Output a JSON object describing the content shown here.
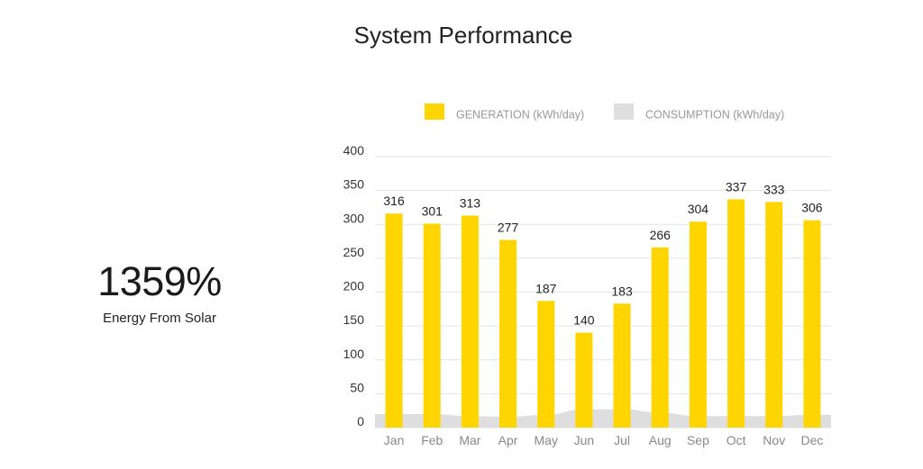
{
  "header": {
    "title": "System Performance"
  },
  "summary": {
    "value": "1359%",
    "label": "Energy From Solar"
  },
  "colors": {
    "generation": "#FFD500",
    "consumption": "#DEDEDE",
    "grid": "#E3E3E3"
  },
  "chart_data": {
    "type": "bar",
    "title": "",
    "xlabel": "",
    "ylabel": "",
    "ylim": [
      0,
      400
    ],
    "yticks": [
      0,
      50,
      100,
      150,
      200,
      250,
      300,
      350,
      400
    ],
    "categories": [
      "Jan",
      "Feb",
      "Mar",
      "Apr",
      "May",
      "Jun",
      "Jul",
      "Aug",
      "Sep",
      "Oct",
      "Nov",
      "Dec"
    ],
    "legend_position": "top-right",
    "series": [
      {
        "name": "GENERATION (kWh/day)",
        "type": "bar",
        "color": "#FFD500",
        "values": [
          316,
          301,
          313,
          277,
          187,
          140,
          183,
          266,
          304,
          337,
          333,
          306
        ]
      },
      {
        "name": "CONSUMPTION (kWh/day)",
        "type": "area",
        "color": "#DEDEDE",
        "values": [
          20,
          20,
          17,
          16,
          19,
          27,
          27,
          22,
          17,
          17,
          17,
          19
        ]
      }
    ]
  }
}
